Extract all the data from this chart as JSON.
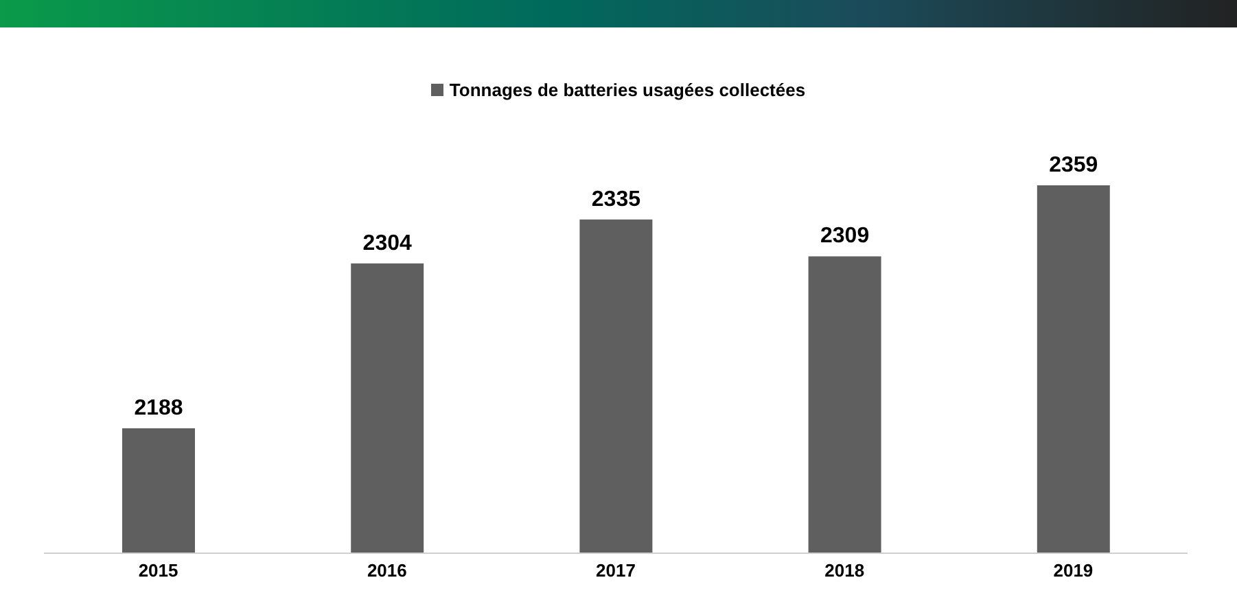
{
  "chart_data": {
    "type": "bar",
    "categories": [
      "2015",
      "2016",
      "2017",
      "2018",
      "2019"
    ],
    "series": [
      {
        "name": "Tonnages de batteries usagées collectées",
        "color": "#5f5f5f",
        "values": [
          2188,
          2304,
          2335,
          2309,
          2359
        ]
      }
    ],
    "ylim": [
      2100,
      2359
    ],
    "data_labels": true,
    "legend": "top",
    "grid": false
  }
}
